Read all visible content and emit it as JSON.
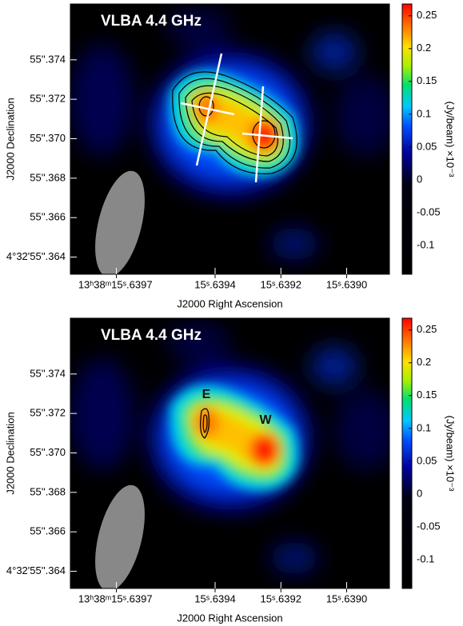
{
  "chart_data": [
    {
      "type": "image",
      "title": "VLBA 4.4 GHz",
      "xlabel": "J2000 Right Ascension",
      "ylabel": "J2000 Declination",
      "xlim": [
        15.63984,
        15.63887
      ],
      "xticks": [
        {
          "value": 15.6397,
          "label": "13ʰ38ᵐ15ˢ.6397"
        },
        {
          "value": 15.6394,
          "label": "15ˢ.6394"
        },
        {
          "value": 15.6392,
          "label": "15ˢ.6392"
        },
        {
          "value": 15.639,
          "label": "15ˢ.6390"
        }
      ],
      "ylim": [
        55.36313,
        55.37683
      ],
      "yticks": [
        {
          "value": 55.364,
          "label": "4°32'55''.364"
        },
        {
          "value": 55.366,
          "label": "55''.366"
        },
        {
          "value": 55.368,
          "label": "55''.368"
        },
        {
          "value": 55.37,
          "label": "55''.370"
        },
        {
          "value": 55.372,
          "label": "55''.372"
        },
        {
          "value": 55.374,
          "label": "55''.374"
        }
      ],
      "colorbar_label": "(Jy/beam)  ×10⁻³",
      "clim": [
        -0.144,
        0.268
      ],
      "cticks": [
        -0.1,
        -0.05,
        0,
        0.05,
        0.1,
        0.15,
        0.2,
        0.25
      ]
    },
    {
      "type": "image",
      "title": "VLBA 4.4 GHz",
      "xlabel": "J2000 Right Ascension",
      "ylabel": "J2000 Declination",
      "xlim": [
        15.63984,
        15.63887
      ],
      "xticks": [
        {
          "value": 15.6397,
          "label": "13ʰ38ᵐ15ˢ.6397"
        },
        {
          "value": 15.6394,
          "label": "15ˢ.6394"
        },
        {
          "value": 15.6392,
          "label": "15ˢ.6392"
        },
        {
          "value": 15.639,
          "label": "15ˢ.6390"
        }
      ],
      "ylim": [
        55.36313,
        55.37683
      ],
      "yticks": [
        {
          "value": 55.364,
          "label": "4°32'55''.364"
        },
        {
          "value": 55.366,
          "label": "55''.366"
        },
        {
          "value": 55.368,
          "label": "55''.368"
        },
        {
          "value": 55.37,
          "label": "55''.370"
        },
        {
          "value": 55.372,
          "label": "55''.372"
        },
        {
          "value": 55.374,
          "label": "55''.374"
        }
      ],
      "colorbar_label": "(Jy/beam)  ×10⁻³",
      "clim": [
        -0.144,
        0.268
      ],
      "cticks": [
        -0.1,
        -0.05,
        0,
        0.05,
        0.1,
        0.15,
        0.2,
        0.25
      ],
      "annotations": [
        "E",
        "W"
      ]
    }
  ]
}
